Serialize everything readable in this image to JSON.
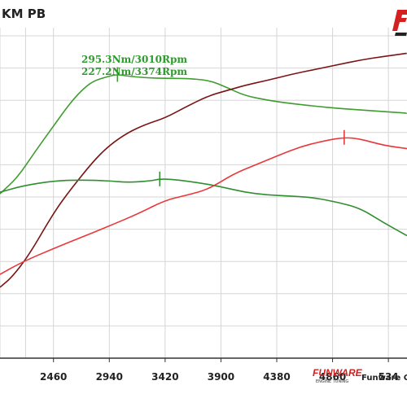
{
  "title": "KM PB",
  "branding": {
    "footer_text": "Funware Chi"
  },
  "colors": {
    "power_stock": "#7a1414",
    "power_tuned": "#e8383a",
    "torque_stock": "#3f9c2f",
    "torque_tuned": "#2f8e2f",
    "grid": "#d6d6d6",
    "axis": "#333333"
  },
  "chart_data": {
    "type": "line",
    "title": "KM PB",
    "xlabel": "",
    "ylabel": "",
    "x_ticks": [
      2460,
      2940,
      3420,
      3900,
      4380,
      4860,
      534
    ],
    "x_tick_labels": [
      "2460",
      "2940",
      "3420",
      "3900",
      "4380",
      "4860",
      "534"
    ],
    "xlim": [
      2000,
      5500
    ],
    "ylim": [
      0,
      100
    ],
    "grid": true,
    "legend": "none",
    "annotations": [
      {
        "text": "295.3Nm/3010Rpm",
        "x": 3010
      },
      {
        "text": "227.2Nm/3374Rpm",
        "x": 3374
      }
    ],
    "series": [
      {
        "key": "torque_stock",
        "x": [
          2000,
          2150,
          2300,
          2460,
          2600,
          2700,
          2800,
          2940,
          3010,
          3100,
          3250,
          3420,
          3600,
          3800,
          3950,
          4100,
          4300,
          4500,
          4700,
          4900,
          5100,
          5300,
          5500
        ],
        "y": [
          51,
          56,
          64,
          72,
          79,
          83,
          86,
          87.5,
          88,
          87.5,
          87,
          86.8,
          86.8,
          86.2,
          84,
          81.5,
          80,
          79,
          78.2,
          77.5,
          77,
          76.5,
          76
        ]
      },
      {
        "key": "power_stock",
        "x": [
          2000,
          2100,
          2250,
          2460,
          2600,
          2800,
          2940,
          3100,
          3250,
          3420,
          3600,
          3800,
          3950,
          4100,
          4300,
          4500,
          4700,
          4900,
          5100,
          5300,
          5500
        ],
        "y": [
          22,
          25,
          32,
          45,
          52,
          61,
          66,
          70,
          72.5,
          74.5,
          78,
          81.5,
          83,
          84.6,
          86.2,
          88,
          89.5,
          91,
          92.5,
          93.6,
          94.6
        ]
      },
      {
        "key": "torque_tuned",
        "x": [
          2000,
          2200,
          2460,
          2700,
          2940,
          3100,
          3300,
          3374,
          3500,
          3700,
          3900,
          4100,
          4300,
          4500,
          4700,
          4900,
          5100,
          5300,
          5500
        ],
        "y": [
          51.5,
          53.5,
          55,
          55.3,
          55,
          54.5,
          55,
          55.6,
          55.4,
          54.5,
          53.2,
          51.5,
          50.6,
          50.3,
          49.8,
          48.4,
          46.5,
          42,
          38
        ]
      },
      {
        "key": "power_tuned",
        "x": [
          2000,
          2200,
          2460,
          2700,
          2940,
          3200,
          3420,
          3600,
          3800,
          4000,
          4200,
          4400,
          4600,
          4800,
          4960,
          5100,
          5300,
          5500
        ],
        "y": [
          26,
          30,
          34,
          37.5,
          41,
          45,
          49,
          50.5,
          52.5,
          57,
          60,
          63,
          65.8,
          67.5,
          68.5,
          68,
          66,
          65
        ]
      }
    ],
    "markers": [
      {
        "series": "torque_stock",
        "x": 3010,
        "y": 88
      },
      {
        "series": "torque_tuned",
        "x": 3374,
        "y": 55.6
      },
      {
        "series": "power_tuned",
        "x": 4960,
        "y": 68.5
      }
    ]
  }
}
